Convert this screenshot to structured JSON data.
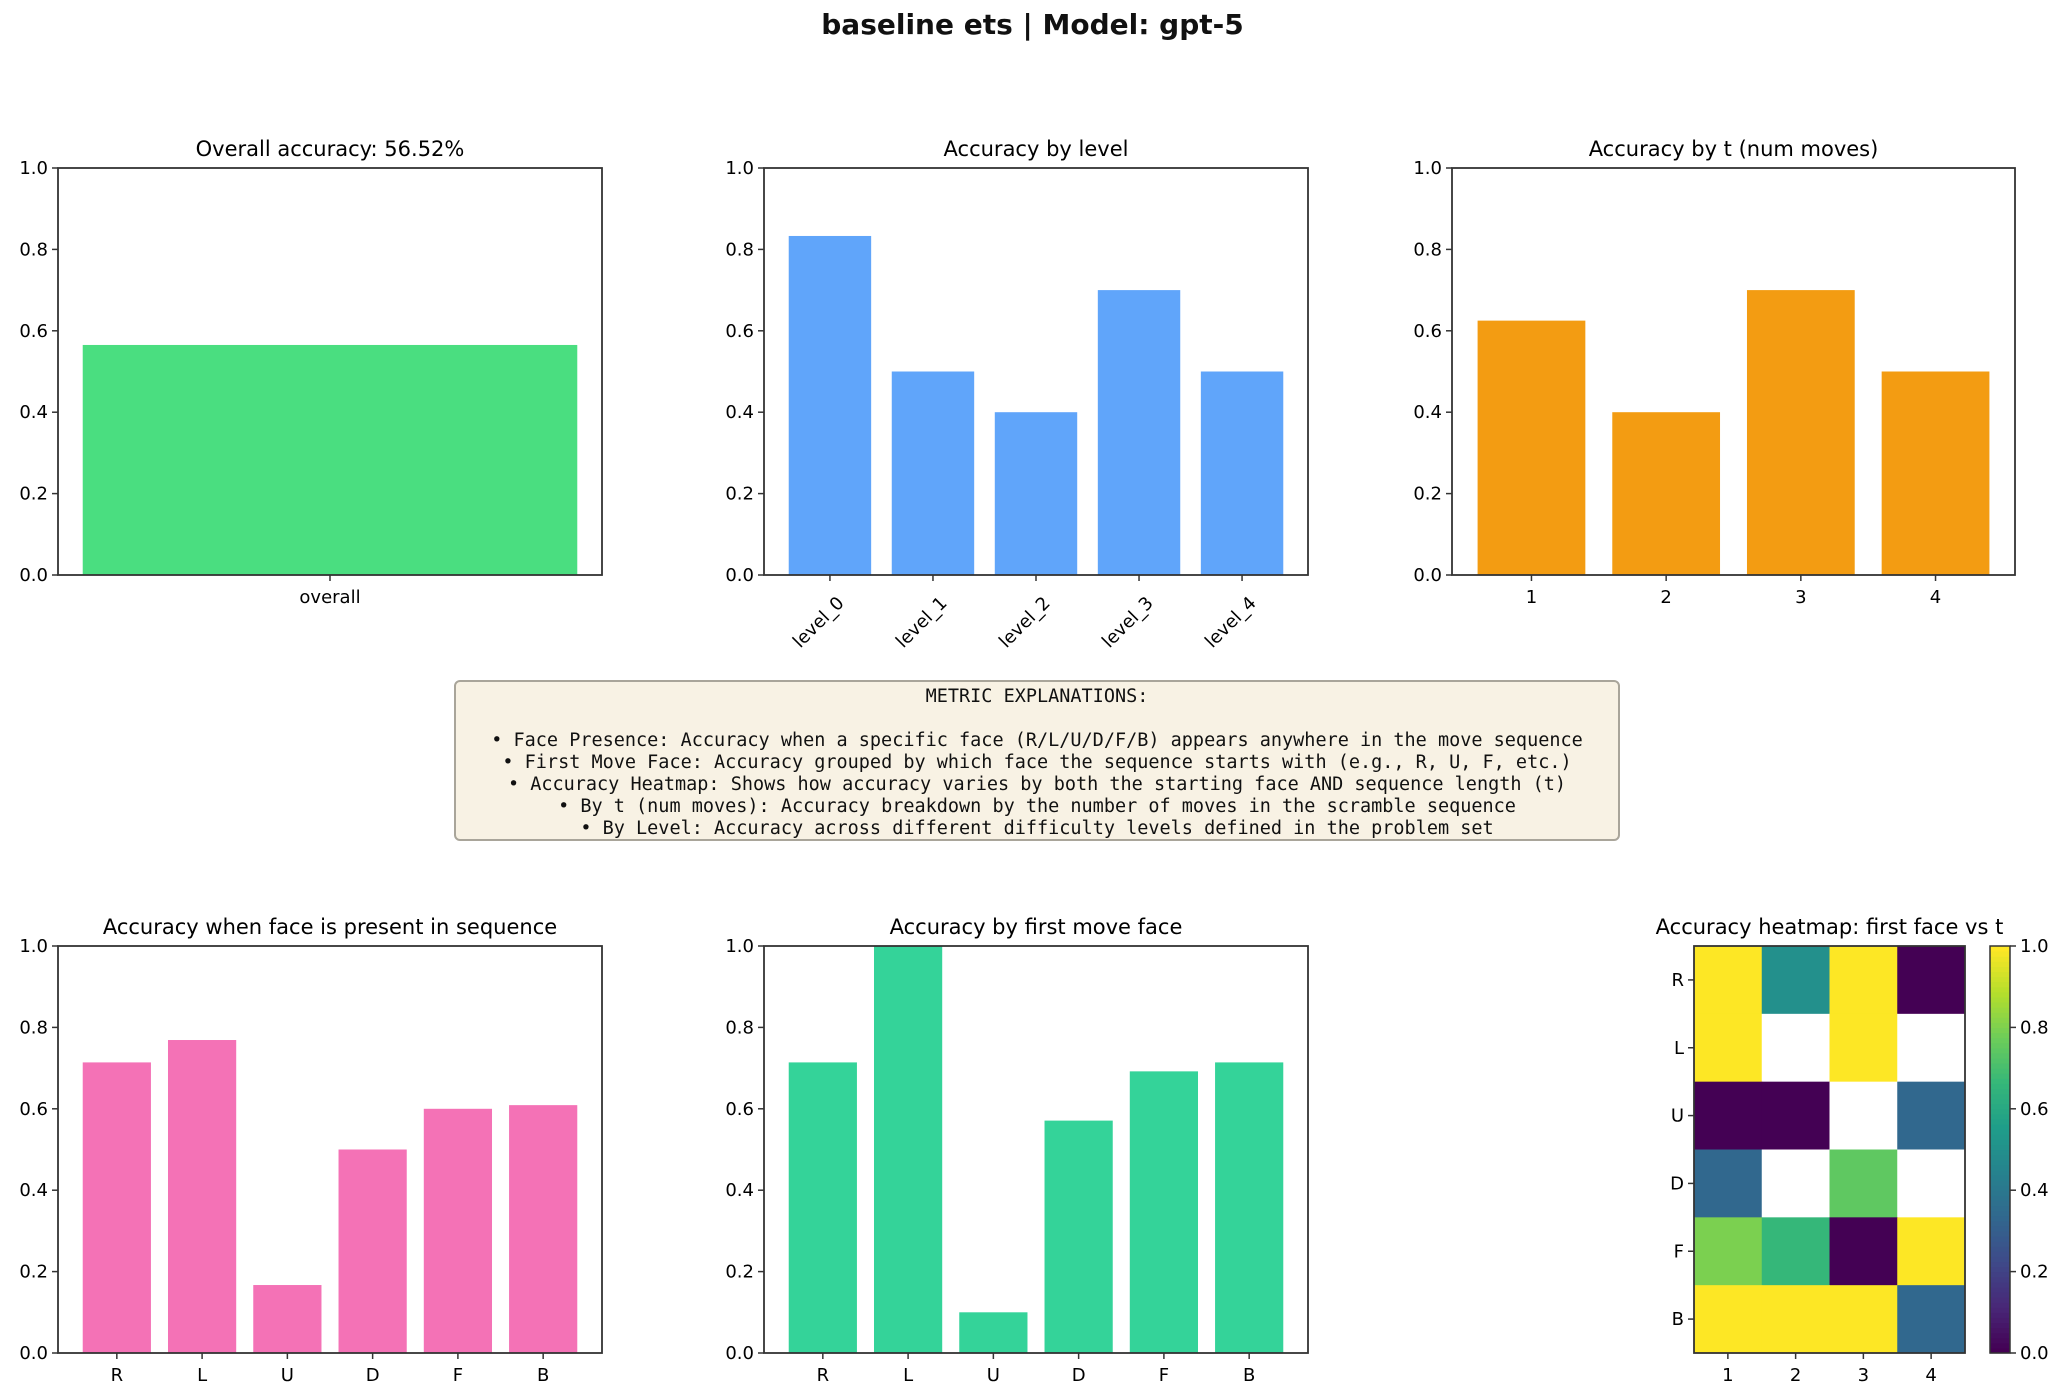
{
  "suptitle": "baseline ets | Model: gpt-5",
  "metric_box": {
    "heading": "METRIC EXPLANATIONS:",
    "lines": [
      "• Face Presence: Accuracy when a specific face (R/L/U/D/F/B) appears anywhere in the move sequence",
      "• First Move Face: Accuracy grouped by which face the sequence starts with (e.g., R, U, F, etc.)",
      "• Accuracy Heatmap: Shows how accuracy varies by both the starting face AND sequence length (t)",
      "• By t (num moves): Accuracy breakdown by the number of moves in the scramble sequence",
      "• By Level: Accuracy across different difficulty levels defined in the problem set"
    ]
  },
  "chart_data": [
    {
      "id": "overall",
      "type": "bar",
      "title": "Overall accuracy: 56.52%",
      "categories": [
        "overall"
      ],
      "values": [
        0.5652
      ],
      "color": "#4ade80",
      "ylim": [
        0,
        1
      ],
      "yticks": [
        "0.0",
        "0.2",
        "0.4",
        "0.6",
        "0.8",
        "1.0"
      ],
      "xlabel": "",
      "ylabel": ""
    },
    {
      "id": "level",
      "type": "bar",
      "title": "Accuracy by level",
      "categories": [
        "level_0",
        "level_1",
        "level_2",
        "level_3",
        "level_4"
      ],
      "values": [
        0.833,
        0.5,
        0.4,
        0.7,
        0.5
      ],
      "color": "#60a5fa",
      "ylim": [
        0,
        1
      ],
      "yticks": [
        "0.0",
        "0.2",
        "0.4",
        "0.6",
        "0.8",
        "1.0"
      ],
      "rotate_xticks": true
    },
    {
      "id": "t",
      "type": "bar",
      "title": "Accuracy by t (num moves)",
      "categories": [
        "1",
        "2",
        "3",
        "4"
      ],
      "values": [
        0.625,
        0.4,
        0.7,
        0.5
      ],
      "color": "#f39c12",
      "ylim": [
        0,
        1
      ],
      "yticks": [
        "0.0",
        "0.2",
        "0.4",
        "0.6",
        "0.8",
        "1.0"
      ]
    },
    {
      "id": "presence",
      "type": "bar",
      "title": "Accuracy when face is present in sequence",
      "categories": [
        "R",
        "L",
        "U",
        "D",
        "F",
        "B"
      ],
      "values": [
        0.714,
        0.769,
        0.167,
        0.5,
        0.6,
        0.609
      ],
      "color": "#f472b6",
      "ylim": [
        0,
        1
      ],
      "yticks": [
        "0.0",
        "0.2",
        "0.4",
        "0.6",
        "0.8",
        "1.0"
      ]
    },
    {
      "id": "firstface",
      "type": "bar",
      "title": "Accuracy by first move face",
      "categories": [
        "R",
        "L",
        "U",
        "D",
        "F",
        "B"
      ],
      "values": [
        0.714,
        1.0,
        0.1,
        0.571,
        0.692,
        0.714
      ],
      "color": "#34d399",
      "ylim": [
        0,
        1
      ],
      "yticks": [
        "0.0",
        "0.2",
        "0.4",
        "0.6",
        "0.8",
        "1.0"
      ]
    },
    {
      "id": "heatmap",
      "type": "heatmap",
      "title": "Accuracy heatmap: first face vs t",
      "rows": [
        "R",
        "L",
        "U",
        "D",
        "F",
        "B"
      ],
      "cols": [
        "1",
        "2",
        "3",
        "4"
      ],
      "values": [
        [
          1.0,
          0.5,
          1.0,
          0.0
        ],
        [
          1.0,
          null,
          1.0,
          null
        ],
        [
          0.0,
          0.0,
          null,
          0.333
        ],
        [
          0.333,
          null,
          0.75,
          null
        ],
        [
          0.8,
          0.667,
          0.0,
          1.0
        ],
        [
          1.0,
          1.0,
          1.0,
          0.333
        ]
      ],
      "colormap": "viridis",
      "vmin": 0,
      "vmax": 1,
      "colorbar_ticks": [
        "0.0",
        "0.2",
        "0.4",
        "0.6",
        "0.8",
        "1.0"
      ]
    }
  ]
}
